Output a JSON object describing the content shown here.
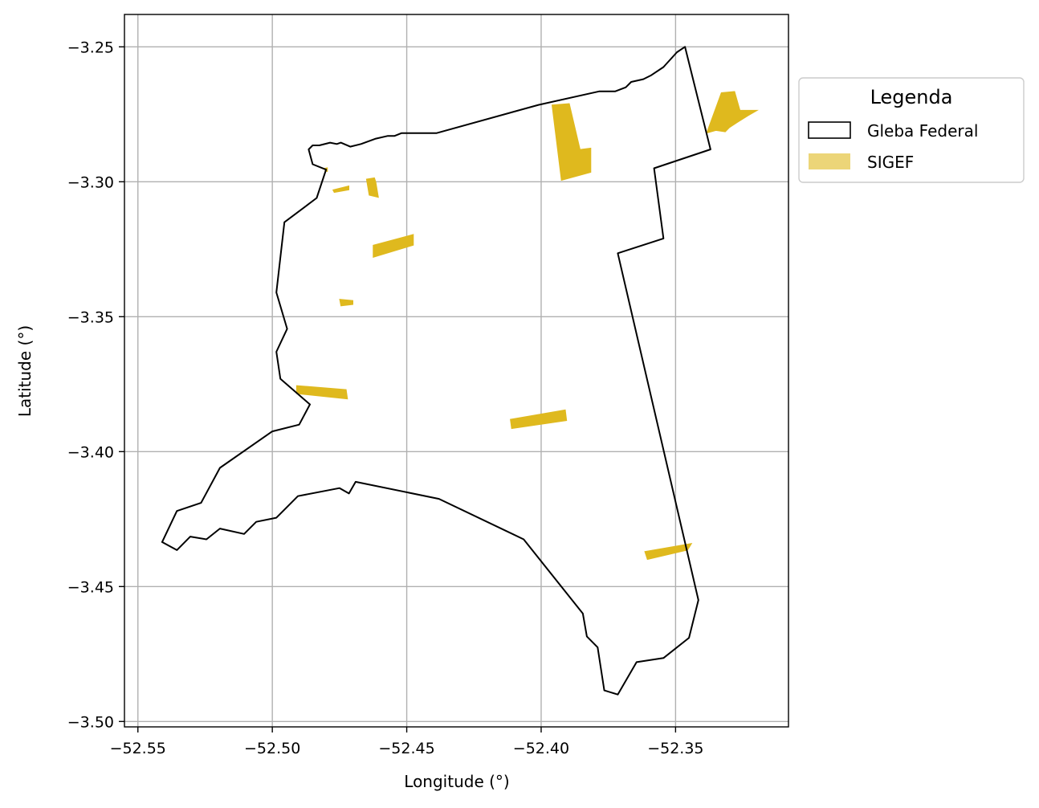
{
  "chart_data": {
    "type": "map",
    "xlabel": "Longitude (°)",
    "ylabel": "Latitude (°)",
    "xlim": [
      -52.555,
      -52.308
    ],
    "ylim": [
      -3.502,
      -3.238
    ],
    "x_ticks": [
      -52.55,
      -52.5,
      -52.45,
      -52.4,
      -52.35
    ],
    "x_tick_labels": [
      "−52.55",
      "−52.50",
      "−52.45",
      "−52.40",
      "−52.35"
    ],
    "y_ticks": [
      -3.25,
      -3.3,
      -3.35,
      -3.4,
      -3.45,
      -3.5
    ],
    "y_tick_labels": [
      "−3.25",
      "−3.30",
      "−3.35",
      "−3.40",
      "−3.45",
      "−3.50"
    ],
    "grid": true,
    "legend": {
      "title": "Legenda",
      "placement": "outside-right-top",
      "entries": [
        {
          "label": "Gleba Federal",
          "style": "outline",
          "color": "#000000"
        },
        {
          "label": "SIGEF",
          "style": "fill",
          "color": "#dfb91e"
        }
      ]
    },
    "gleba_federal": [
      [
        -52.3465,
        -3.25
      ],
      [
        -52.337,
        -3.288
      ],
      [
        -52.358,
        -3.295
      ],
      [
        -52.3545,
        -3.321
      ],
      [
        -52.3715,
        -3.3265
      ],
      [
        -52.3415,
        -3.455
      ],
      [
        -52.345,
        -3.469
      ],
      [
        -52.3545,
        -3.4765
      ],
      [
        -52.3645,
        -3.478
      ],
      [
        -52.3715,
        -3.49
      ],
      [
        -52.3765,
        -3.4885
      ],
      [
        -52.379,
        -3.4725
      ],
      [
        -52.383,
        -3.4685
      ],
      [
        -52.3845,
        -3.46
      ],
      [
        -52.4065,
        -3.4325
      ],
      [
        -52.438,
        -3.4175
      ],
      [
        -52.469,
        -3.4112
      ],
      [
        -52.4715,
        -3.4155
      ],
      [
        -52.475,
        -3.4135
      ],
      [
        -52.4905,
        -3.4165
      ],
      [
        -52.4985,
        -3.4245
      ],
      [
        -52.506,
        -3.426
      ],
      [
        -52.5105,
        -3.4305
      ],
      [
        -52.5195,
        -3.4285
      ],
      [
        -52.5245,
        -3.4325
      ],
      [
        -52.5305,
        -3.4315
      ],
      [
        -52.5355,
        -3.4365
      ],
      [
        -52.541,
        -3.4335
      ],
      [
        -52.5355,
        -3.422
      ],
      [
        -52.5265,
        -3.419
      ],
      [
        -52.5195,
        -3.406
      ],
      [
        -52.5,
        -3.3925
      ],
      [
        -52.49,
        -3.39
      ],
      [
        -52.486,
        -3.3825
      ],
      [
        -52.497,
        -3.373
      ],
      [
        -52.4985,
        -3.363
      ],
      [
        -52.4945,
        -3.3545
      ],
      [
        -52.4985,
        -3.341
      ],
      [
        -52.4955,
        -3.315
      ],
      [
        -52.4835,
        -3.306
      ],
      [
        -52.48,
        -3.2955
      ],
      [
        -52.485,
        -3.2935
      ],
      [
        -52.4865,
        -3.288
      ],
      [
        -52.485,
        -3.2865
      ],
      [
        -52.4825,
        -3.2865
      ],
      [
        -52.4785,
        -3.2855
      ],
      [
        -52.476,
        -3.286
      ],
      [
        -52.4745,
        -3.2855
      ],
      [
        -52.471,
        -3.287
      ],
      [
        -52.467,
        -3.286
      ],
      [
        -52.4615,
        -3.284
      ],
      [
        -52.457,
        -3.283
      ],
      [
        -52.4545,
        -3.283
      ],
      [
        -52.452,
        -3.282
      ],
      [
        -52.439,
        -3.282
      ],
      [
        -52.401,
        -3.2715
      ],
      [
        -52.3785,
        -3.2665
      ],
      [
        -52.3725,
        -3.2665
      ],
      [
        -52.3685,
        -3.265
      ],
      [
        -52.3665,
        -3.263
      ],
      [
        -52.362,
        -3.262
      ],
      [
        -52.359,
        -3.2605
      ],
      [
        -52.3545,
        -3.2575
      ],
      [
        -52.3495,
        -3.252
      ]
    ],
    "sigef_parcels": [
      [
        [
          -52.396,
          -3.2715
        ],
        [
          -52.3895,
          -3.271
        ],
        [
          -52.3855,
          -3.288
        ],
        [
          -52.3815,
          -3.2875
        ],
        [
          -52.3815,
          -3.2965
        ],
        [
          -52.3925,
          -3.2995
        ]
      ],
      [
        [
          -52.3385,
          -3.282
        ],
        [
          -52.333,
          -3.267
        ],
        [
          -52.328,
          -3.2665
        ],
        [
          -52.326,
          -3.2735
        ],
        [
          -52.3195,
          -3.2735
        ],
        [
          -52.323,
          -3.2755
        ],
        [
          -52.327,
          -3.278
        ],
        [
          -52.33,
          -3.28
        ],
        [
          -52.3315,
          -3.2815
        ],
        [
          -52.335,
          -3.281
        ]
      ],
      [
        [
          -52.465,
          -3.299
        ],
        [
          -52.464,
          -3.305
        ],
        [
          -52.4605,
          -3.3058
        ],
        [
          -52.4615,
          -3.3
        ],
        [
          -52.462,
          -3.2985
        ]
      ],
      [
        [
          -52.4775,
          -3.303
        ],
        [
          -52.4715,
          -3.3015
        ],
        [
          -52.4715,
          -3.303
        ],
        [
          -52.477,
          -3.304
        ]
      ],
      [
        [
          -52.4805,
          -3.295
        ],
        [
          -52.4795,
          -3.2948
        ],
        [
          -52.4795,
          -3.2962
        ],
        [
          -52.4803,
          -3.2962
        ]
      ],
      [
        [
          -52.4625,
          -3.3235
        ],
        [
          -52.4475,
          -3.3195
        ],
        [
          -52.4475,
          -3.3235
        ],
        [
          -52.4625,
          -3.328
        ]
      ],
      [
        [
          -52.475,
          -3.3435
        ],
        [
          -52.47,
          -3.344
        ],
        [
          -52.47,
          -3.3455
        ],
        [
          -52.4745,
          -3.346
        ]
      ],
      [
        [
          -52.491,
          -3.3755
        ],
        [
          -52.4725,
          -3.377
        ],
        [
          -52.472,
          -3.3805
        ],
        [
          -52.491,
          -3.3785
        ]
      ],
      [
        [
          -52.4115,
          -3.388
        ],
        [
          -52.391,
          -3.3845
        ],
        [
          -52.3905,
          -3.3885
        ],
        [
          -52.411,
          -3.3915
        ]
      ],
      [
        [
          -52.3615,
          -3.437
        ],
        [
          -52.344,
          -3.434
        ],
        [
          -52.3455,
          -3.4365
        ],
        [
          -52.3605,
          -3.44
        ]
      ]
    ]
  }
}
